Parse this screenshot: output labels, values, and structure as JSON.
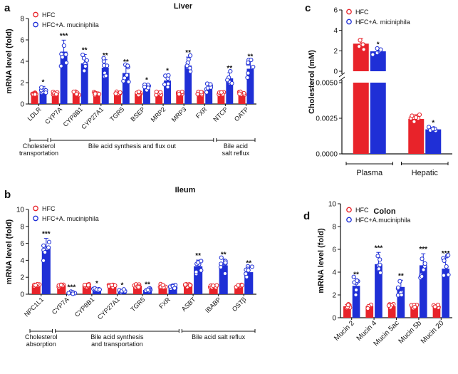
{
  "colors": {
    "hfc": "#e8232a",
    "akk": "#1f2fd6",
    "ink": "#111111"
  },
  "chart_data": [
    {
      "panel": "a",
      "title": "Liver",
      "type": "bar",
      "ylabel": "mRNA level (fold)",
      "ylim": [
        0,
        8
      ],
      "yticks": [
        0,
        2,
        4,
        6,
        8
      ],
      "legend": [
        "HFC",
        "HFC+A. muciniphila"
      ],
      "categories": [
        "LDLR",
        "CYP7A",
        "CYP8B1",
        "CYP27A1",
        "TGR5",
        "BSEP",
        "MRP2",
        "MRP3",
        "FXR",
        "NTCP",
        "OATP"
      ],
      "series": [
        {
          "name": "HFC",
          "values": [
            1.0,
            1.0,
            1.0,
            1.0,
            1.0,
            1.0,
            1.0,
            1.0,
            1.0,
            1.0,
            1.0
          ]
        },
        {
          "name": "HFC+A. muciniphila",
          "values": [
            1.35,
            4.9,
            3.8,
            3.4,
            2.9,
            1.5,
            2.2,
            3.6,
            1.5,
            2.4,
            3.3
          ]
        }
      ],
      "significance": [
        "*",
        "***",
        "**",
        "**",
        "**",
        "*",
        "*",
        "**",
        "",
        "**",
        "**"
      ],
      "groups": [
        {
          "label": "Cholesterol transportation",
          "from": 0,
          "to": 0
        },
        {
          "label": "Bile acid synthesis and flux out",
          "from": 1,
          "to": 8
        },
        {
          "label": "Bile acid salt reflux",
          "from": 9,
          "to": 10
        }
      ]
    },
    {
      "panel": "b",
      "title": "Ileum",
      "type": "bar",
      "ylabel": "mRNA level (fold)",
      "ylim": [
        0,
        10
      ],
      "yticks": [
        0,
        2,
        4,
        6,
        8,
        10
      ],
      "legend": [
        "HFC",
        "HFC+A. muciniphila"
      ],
      "categories": [
        "NPC1L1",
        "CYP7A",
        "CYP8B1",
        "CYP27A1",
        "TGR5",
        "FXR",
        "ASBT",
        "IBABP",
        "OSTβ"
      ],
      "series": [
        {
          "name": "HFC",
          "values": [
            1.0,
            1.0,
            1.0,
            1.0,
            1.0,
            1.0,
            1.0,
            1.0,
            1.0
          ]
        },
        {
          "name": "HFC+A. muciniphila",
          "values": [
            5.4,
            0.15,
            0.6,
            0.4,
            0.5,
            0.9,
            3.3,
            3.4,
            2.6
          ]
        }
      ],
      "significance": [
        "***",
        "***",
        "*",
        "*",
        "**",
        "",
        "**",
        "**",
        "**"
      ],
      "groups": [
        {
          "label": "Cholesterol absorption",
          "from": 0,
          "to": 0
        },
        {
          "label": "Bile acid synthesis and transportation",
          "from": 1,
          "to": 5
        },
        {
          "label": "Bile acid salt reflux",
          "from": 6,
          "to": 8
        }
      ]
    },
    {
      "panel": "c",
      "title": "",
      "type": "bar",
      "ylabel": "Cholesterol (mM)",
      "legend": [
        "HFC",
        "HFC+A. miciniphila"
      ],
      "categories": [
        "Plasma",
        "Hepatic"
      ],
      "upper_axis": {
        "ylim": [
          0,
          6
        ],
        "yticks": [
          "0",
          "2",
          "4",
          "6"
        ]
      },
      "lower_axis": {
        "ylim": [
          0,
          0.005
        ],
        "yticks": [
          "0.0000",
          "0.0025",
          "0.0050"
        ]
      },
      "series": [
        {
          "name": "HFC",
          "values": [
            2.7,
            0.00245
          ]
        },
        {
          "name": "HFC+A. miciniphila",
          "values": [
            1.95,
            0.00172
          ]
        }
      ],
      "significance": [
        "*",
        "*"
      ]
    },
    {
      "panel": "d",
      "title": "Colon",
      "type": "bar",
      "ylabel": "mRNA level (fold)",
      "ylim": [
        0,
        10
      ],
      "yticks": [
        0,
        2,
        4,
        6,
        8,
        10
      ],
      "legend": [
        "HFC",
        "HFC+A.muciniphila"
      ],
      "categories": [
        "Mucin 2",
        "Mucin 4",
        "Mucin 5ac",
        "Mucin 5b",
        "Mucin 20"
      ],
      "series": [
        {
          "name": "HFC",
          "values": [
            1.0,
            1.0,
            1.0,
            1.0,
            1.0
          ]
        },
        {
          "name": "HFC+A.muciniphila",
          "values": [
            2.8,
            4.7,
            2.7,
            4.6,
            4.3
          ]
        }
      ],
      "significance": [
        "**",
        "***",
        "**",
        "***",
        "***"
      ]
    }
  ]
}
